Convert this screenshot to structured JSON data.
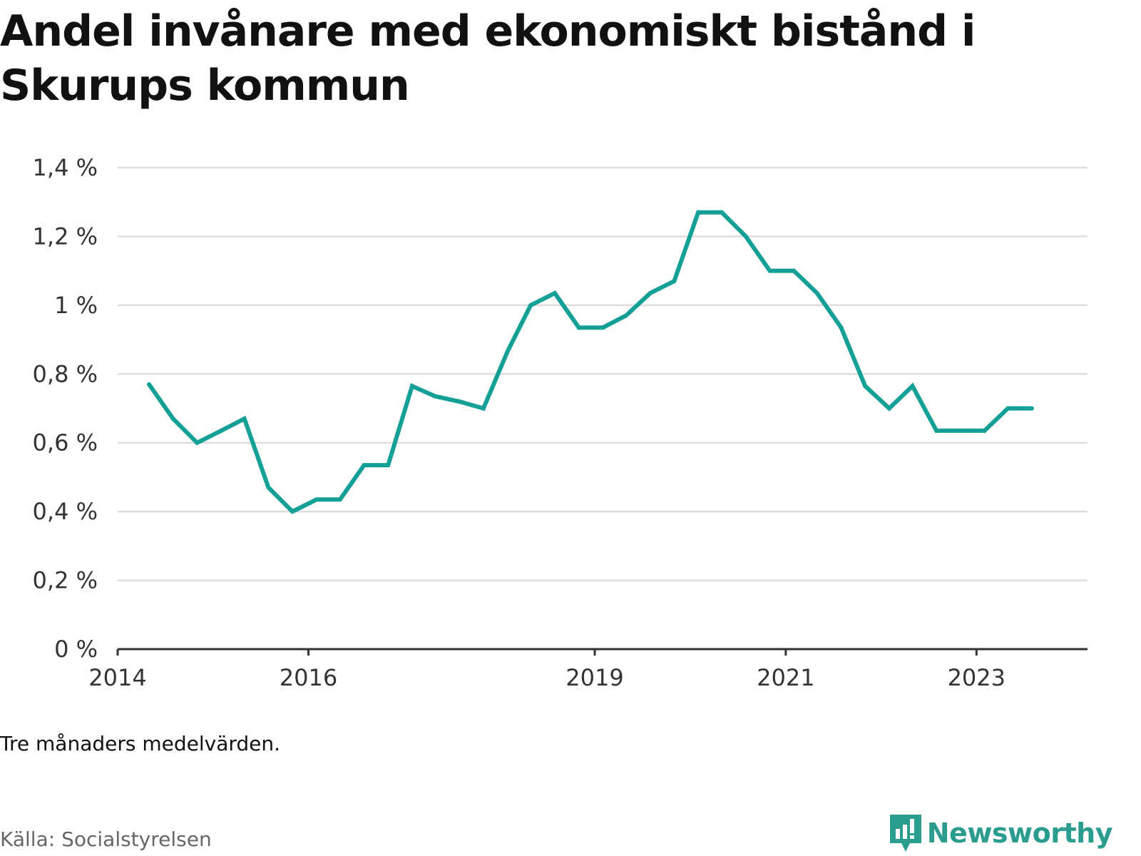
{
  "title": "Andel invånare med ekonomiskt bistånd i Skurups kommun",
  "note": "Tre månaders medelvärden.",
  "source": "Källa: Socialstyrelsen",
  "brand": {
    "name": "Newsworthy",
    "color": "#2a9d8f",
    "icon": "newsworthy-logo-icon"
  },
  "colors": {
    "line": "#14a096",
    "grid": "#dddddd",
    "axis": "#333333"
  },
  "chart_data": {
    "type": "line",
    "title": "Andel invånare med ekonomiskt bistånd i Skurups kommun",
    "xlabel": "",
    "ylabel": "",
    "ylim": [
      0,
      1.4
    ],
    "xlim": [
      "2014-01-01",
      "2024-03-01"
    ],
    "y_ticks": [
      0,
      0.2,
      0.4,
      0.6,
      0.8,
      1.0,
      1.2,
      1.4
    ],
    "y_tick_labels": [
      "0 %",
      "0,2 %",
      "0,4 %",
      "0,6 %",
      "0,8 %",
      "1 %",
      "1,2 %",
      "1,4 %"
    ],
    "x_ticks": [
      "2014-01-01",
      "2016-01-01",
      "2019-01-01",
      "2021-01-01",
      "2023-01-01"
    ],
    "x_tick_labels": [
      "2014",
      "2016",
      "2019",
      "2021",
      "2023"
    ],
    "grid": true,
    "series": [
      {
        "x": [
          "2014-05",
          "2014-08",
          "2014-11",
          "2015-02",
          "2015-05",
          "2015-08",
          "2015-11",
          "2016-02",
          "2016-05",
          "2016-08",
          "2016-11",
          "2017-02",
          "2017-05",
          "2017-08",
          "2017-11",
          "2018-02",
          "2018-05",
          "2018-08",
          "2018-11",
          "2019-02",
          "2019-05",
          "2019-08",
          "2019-11",
          "2020-02",
          "2020-05",
          "2020-08",
          "2020-11",
          "2021-02",
          "2021-05",
          "2021-08",
          "2021-11",
          "2022-02",
          "2022-05",
          "2022-08",
          "2022-11",
          "2023-02",
          "2023-05",
          "2023-08"
        ],
        "values": [
          0.77,
          0.67,
          0.6,
          0.635,
          0.67,
          0.47,
          0.4,
          0.435,
          0.435,
          0.535,
          0.535,
          0.765,
          0.735,
          0.72,
          0.7,
          0.865,
          1.0,
          1.035,
          0.935,
          0.935,
          0.97,
          1.035,
          1.07,
          1.27,
          1.27,
          1.2,
          1.1,
          1.1,
          1.035,
          0.935,
          0.765,
          0.7,
          0.765,
          0.635,
          0.635,
          0.635,
          0.7,
          0.7
        ]
      }
    ]
  }
}
